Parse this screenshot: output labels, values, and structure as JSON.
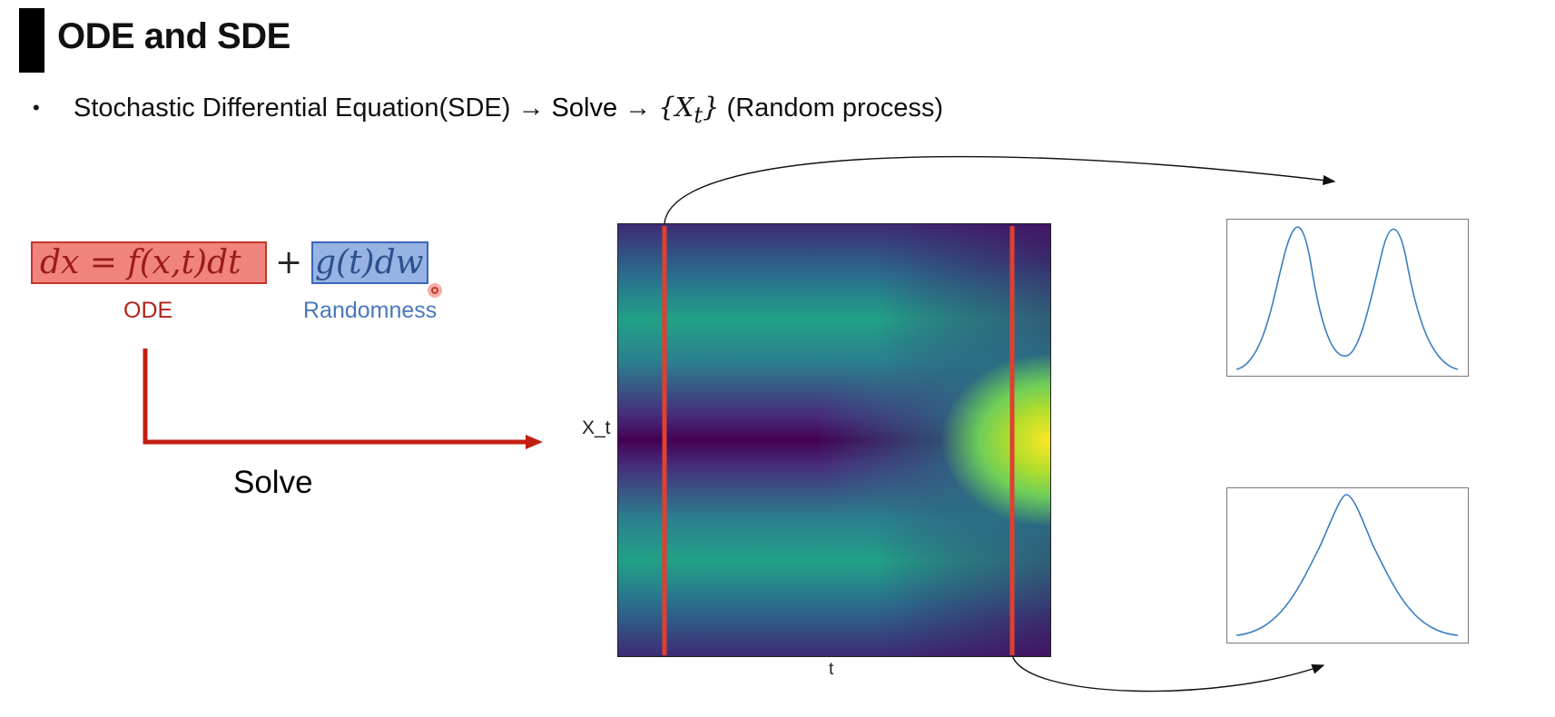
{
  "slide": {
    "title": "ODE and SDE",
    "bullet": {
      "text_before": "Stochastic Differential Equation(SDE) → ",
      "solve": "Solve",
      "arrow": " → ",
      "process_math": "{X",
      "process_sub": "t",
      "process_close": "}",
      "text_after": " (Random process)"
    }
  },
  "equation": {
    "ode_part": "dx = f(x,t)dt",
    "plus": "+",
    "random_part": "g(t)dw",
    "ode_label": "ODE",
    "randomness_label": "Randomness"
  },
  "solve_label": "Solve",
  "heatmap": {
    "xlabel": "t",
    "ylabel": "X_t"
  },
  "colors": {
    "ode_box_fill": "#f0847c",
    "ode_text": "#b2231c",
    "randomness_box_fill": "#97b3e4",
    "randomness_text": "#4a78bb",
    "arrow_red": "#c41e12",
    "slice_line": "#e0402f",
    "curve_blue": "#3a7ebf"
  },
  "distributions": {
    "top_shape": "bimodal",
    "bottom_shape": "unimodal"
  }
}
